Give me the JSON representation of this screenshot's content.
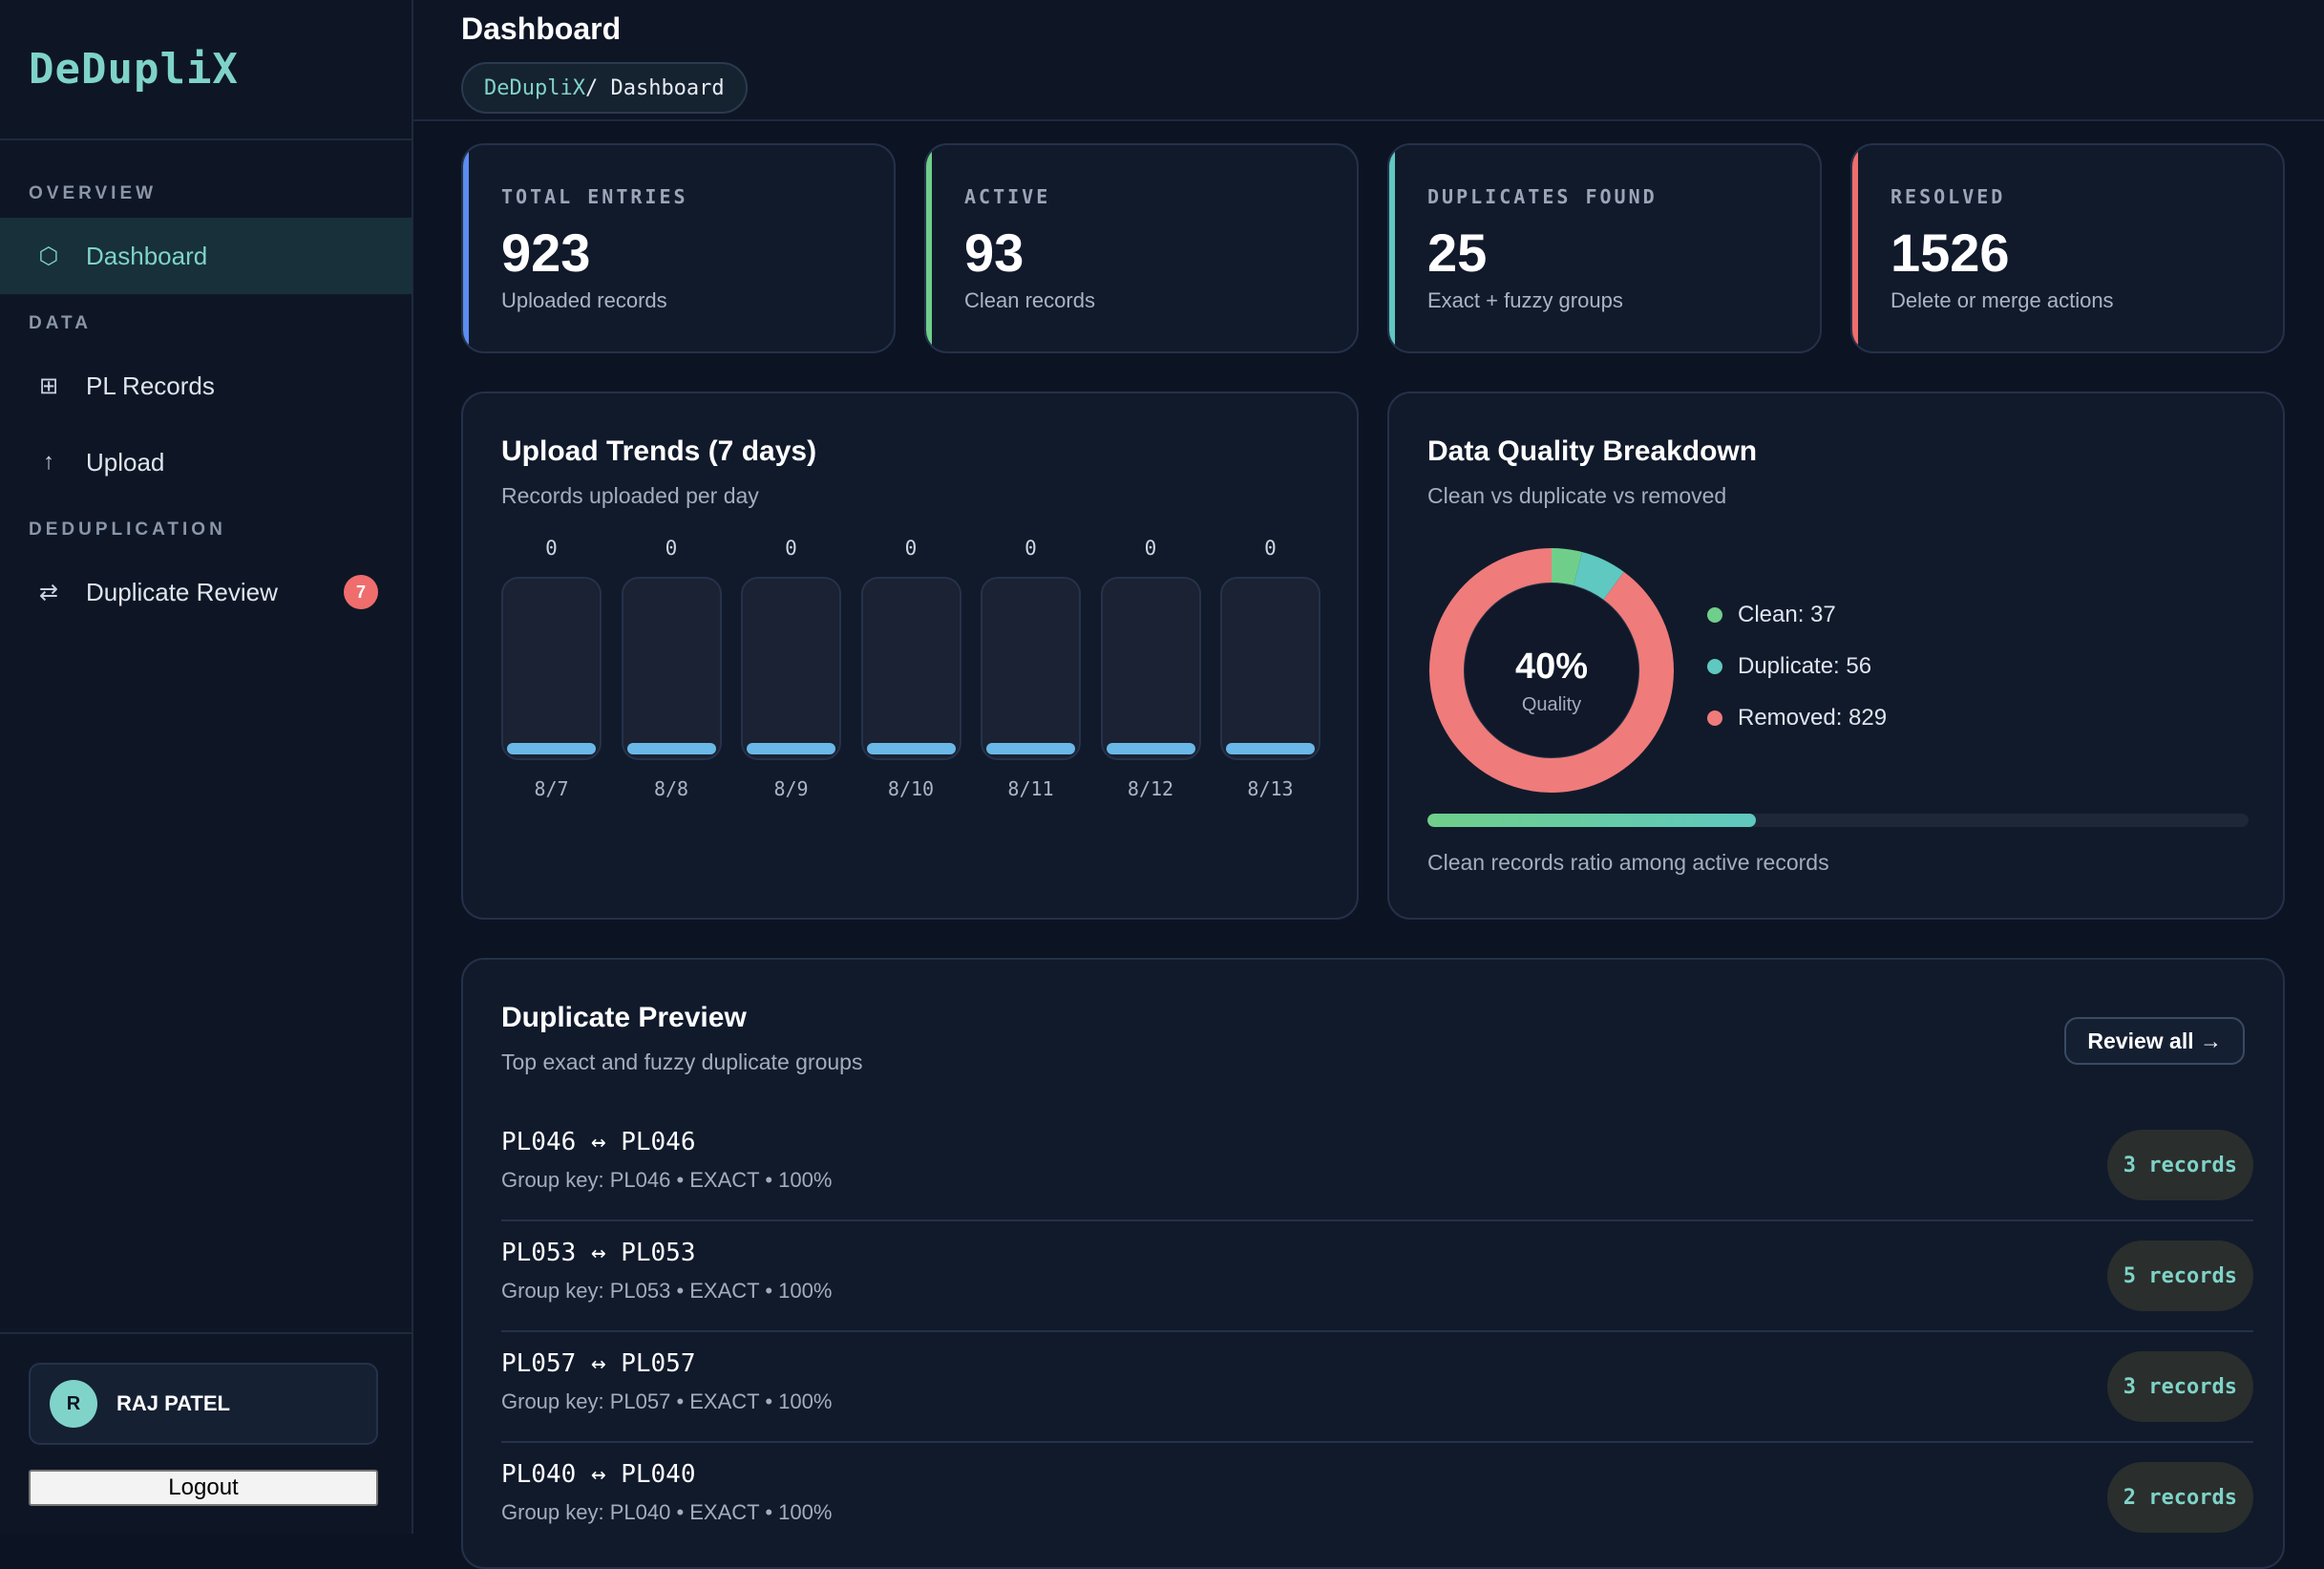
{
  "app": {
    "brand": "DeDupliX"
  },
  "sidebar": {
    "sections": [
      {
        "label": "OVERVIEW"
      },
      {
        "label": "DATA"
      },
      {
        "label": "DEDUPLICATION"
      }
    ],
    "items": [
      {
        "label": "Dashboard",
        "icon": "hexagon-icon",
        "glyph": "⬡",
        "active": true
      },
      {
        "label": "PL Records",
        "icon": "grid-icon",
        "glyph": "⊞"
      },
      {
        "label": "Upload",
        "icon": "upload-arrow-icon",
        "glyph": "↑"
      },
      {
        "label": "Duplicate Review",
        "icon": "swap-arrows-icon",
        "glyph": "⇄",
        "badge": "7"
      }
    ],
    "user": {
      "initial": "R",
      "name": "RAJ PATEL"
    },
    "logout_label": "Logout"
  },
  "header": {
    "title": "Dashboard",
    "breadcrumb": {
      "root": "DeDupliX",
      "current": "/ Dashboard"
    }
  },
  "stats": [
    {
      "label": "TOTAL ENTRIES",
      "value": "923",
      "sub": "Uploaded records",
      "accent": "#5b8def"
    },
    {
      "label": "ACTIVE",
      "value": "93",
      "sub": "Clean records",
      "accent": "#6fcf8a"
    },
    {
      "label": "DUPLICATES FOUND",
      "value": "25",
      "sub": "Exact + fuzzy groups",
      "accent": "#5fc8c0"
    },
    {
      "label": "RESOLVED",
      "value": "1526",
      "sub": "Delete or merge actions",
      "accent": "#ef6d6d"
    }
  ],
  "upload_trends": {
    "title": "Upload Trends (7 days)",
    "subtitle": "Records uploaded per day"
  },
  "quality": {
    "title": "Data Quality Breakdown",
    "subtitle": "Clean vs duplicate vs removed",
    "center_value": "40%",
    "center_label": "Quality",
    "legend": [
      {
        "label": "Clean: 37",
        "color": "#6fcf8a"
      },
      {
        "label": "Duplicate: 56",
        "color": "#5fc8c0"
      },
      {
        "label": "Removed: 829",
        "color": "#ef7b7b"
      }
    ],
    "clean_ratio": 0.4,
    "caption": "Clean records ratio among active records"
  },
  "chart_data": [
    {
      "type": "bar",
      "title": "Upload Trends (7 days)",
      "categories": [
        "8/7",
        "8/8",
        "8/9",
        "8/10",
        "8/11",
        "8/12",
        "8/13"
      ],
      "values": [
        0,
        0,
        0,
        0,
        0,
        0,
        0
      ]
    },
    {
      "type": "pie",
      "title": "Data Quality Breakdown",
      "categories": [
        "Clean",
        "Duplicate",
        "Removed"
      ],
      "values": [
        37,
        56,
        829
      ],
      "colors": [
        "#6fcf8a",
        "#5fc8c0",
        "#ef7b7b"
      ]
    }
  ],
  "duplicates": {
    "title": "Duplicate Preview",
    "subtitle": "Top exact and fuzzy duplicate groups",
    "review_label": "Review all →",
    "rows": [
      {
        "pair": "PL046 ↔ PL046",
        "key": "Group key: PL046 • EXACT • 100%",
        "count": "3 records"
      },
      {
        "pair": "PL053 ↔ PL053",
        "key": "Group key: PL053 • EXACT • 100%",
        "count": "5 records"
      },
      {
        "pair": "PL057 ↔ PL057",
        "key": "Group key: PL057 • EXACT • 100%",
        "count": "3 records"
      },
      {
        "pair": "PL040 ↔ PL040",
        "key": "Group key: PL040 • EXACT • 100%",
        "count": "2 records"
      }
    ]
  }
}
